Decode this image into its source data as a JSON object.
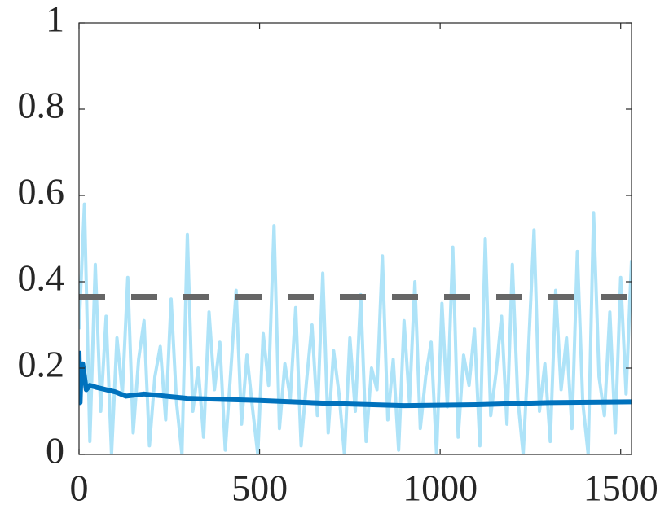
{
  "chart_data": {
    "type": "line",
    "xlim": [
      0,
      1530
    ],
    "ylim": [
      0,
      1
    ],
    "xticks": [
      0,
      500,
      1000,
      1500
    ],
    "yticks": [
      0,
      0.2,
      0.4,
      0.6,
      0.8,
      1
    ],
    "series": [
      {
        "color": "#aee3f8",
        "width": 4,
        "dashed": false,
        "x": [
          0,
          15,
          30,
          45,
          60,
          75,
          90,
          105,
          120,
          135,
          150,
          165,
          180,
          195,
          210,
          225,
          240,
          255,
          270,
          285,
          300,
          315,
          330,
          345,
          360,
          375,
          390,
          405,
          420,
          435,
          450,
          465,
          480,
          495,
          510,
          525,
          540,
          555,
          570,
          585,
          600,
          615,
          630,
          645,
          660,
          675,
          690,
          705,
          720,
          735,
          750,
          765,
          780,
          795,
          810,
          825,
          840,
          855,
          870,
          885,
          900,
          915,
          930,
          945,
          960,
          975,
          990,
          1005,
          1020,
          1035,
          1050,
          1065,
          1080,
          1095,
          1110,
          1125,
          1140,
          1155,
          1170,
          1185,
          1200,
          1215,
          1230,
          1245,
          1260,
          1275,
          1290,
          1305,
          1320,
          1335,
          1350,
          1365,
          1380,
          1395,
          1410,
          1425,
          1440,
          1455,
          1470,
          1485,
          1500,
          1515,
          1530
        ],
        "values": [
          0.29,
          0.58,
          0.03,
          0.44,
          0.1,
          0.32,
          0.0,
          0.27,
          0.14,
          0.41,
          0.05,
          0.22,
          0.31,
          0.02,
          0.18,
          0.25,
          0.08,
          0.36,
          0.12,
          0.0,
          0.51,
          0.1,
          0.2,
          0.04,
          0.33,
          0.15,
          0.26,
          0.01,
          0.19,
          0.38,
          0.07,
          0.23,
          0.11,
          0.0,
          0.28,
          0.16,
          0.53,
          0.06,
          0.21,
          0.13,
          0.34,
          0.02,
          0.17,
          0.3,
          0.09,
          0.42,
          0.05,
          0.24,
          0.14,
          0.0,
          0.27,
          0.1,
          0.37,
          0.03,
          0.2,
          0.15,
          0.46,
          0.08,
          0.22,
          0.01,
          0.31,
          0.12,
          0.4,
          0.06,
          0.18,
          0.26,
          0.0,
          0.35,
          0.11,
          0.48,
          0.04,
          0.23,
          0.16,
          0.29,
          0.02,
          0.5,
          0.09,
          0.19,
          0.32,
          0.07,
          0.44,
          0.13,
          0.0,
          0.25,
          0.52,
          0.1,
          0.21,
          0.03,
          0.38,
          0.15,
          0.27,
          0.06,
          0.47,
          0.12,
          0.0,
          0.56,
          0.18,
          0.09,
          0.33,
          0.05,
          0.41,
          0.14,
          0.45
        ]
      },
      {
        "color": "#666666",
        "width": 7,
        "dashed": true,
        "x": [
          0,
          1530
        ],
        "values": [
          0.365,
          0.365
        ]
      },
      {
        "color": "#0072bd",
        "width": 6,
        "dashed": false,
        "x": [
          0,
          3,
          6,
          10,
          20,
          30,
          50,
          100,
          130,
          180,
          300,
          500,
          700,
          900,
          1100,
          1300,
          1530
        ],
        "values": [
          0.24,
          0.12,
          0.2,
          0.21,
          0.15,
          0.16,
          0.155,
          0.145,
          0.135,
          0.14,
          0.13,
          0.125,
          0.118,
          0.113,
          0.115,
          0.12,
          0.122
        ]
      }
    ]
  }
}
